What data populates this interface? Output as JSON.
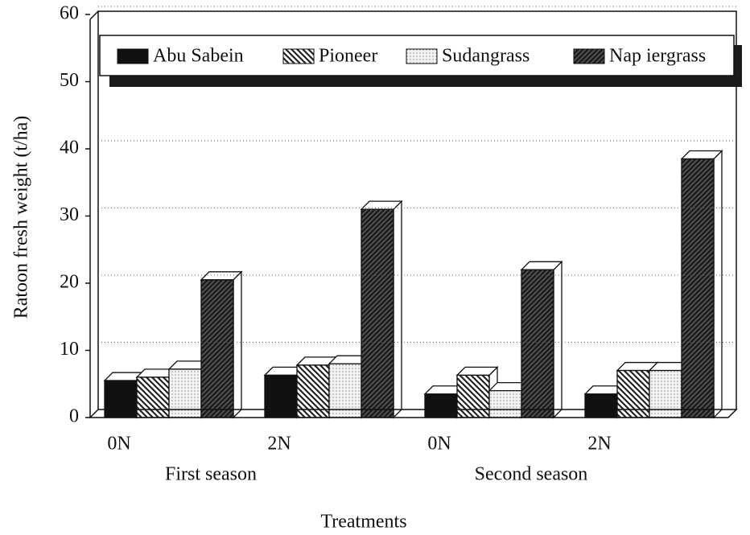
{
  "chart_data": {
    "type": "bar",
    "y_label": "Ratoon fresh weight (t/ha)",
    "x_label": "Treatments",
    "categories": [
      "0N",
      "2N",
      "0N",
      "2N"
    ],
    "groups": [
      "First season",
      "Second season"
    ],
    "series": [
      {
        "name": "Abu Sabein",
        "color": "#111111",
        "values": [
          5.5,
          6.3,
          3.5,
          3.5
        ]
      },
      {
        "name": "Pioneer",
        "color": "#222222",
        "values": [
          6,
          7.8,
          6.3,
          7
        ]
      },
      {
        "name": "Sudangrass",
        "color": "#888888",
        "values": [
          7.2,
          8,
          4,
          7
        ]
      },
      {
        "name": "Nap iergrass",
        "color": "#1a1a1a",
        "values": [
          20.5,
          31,
          22,
          38.5
        ]
      }
    ],
    "ylim": [
      0,
      60
    ],
    "yticks": [
      0,
      10,
      20,
      30,
      40,
      50,
      60
    ],
    "grid": true
  }
}
